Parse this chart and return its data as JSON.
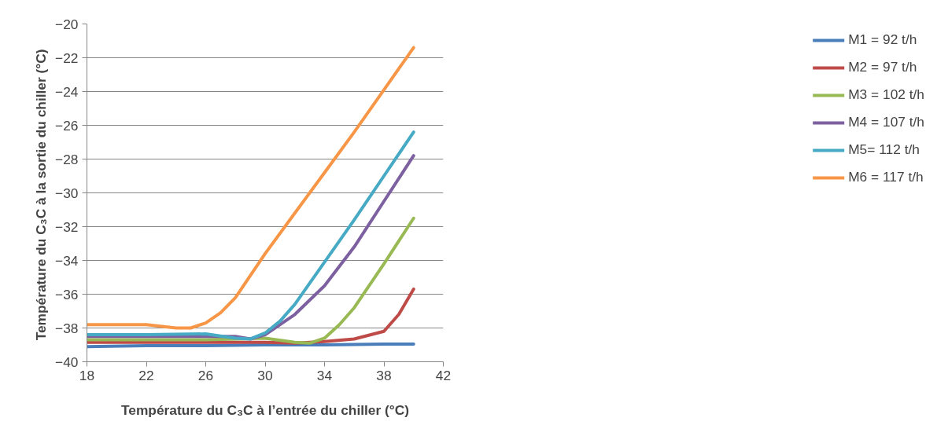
{
  "chart_data": {
    "type": "line",
    "xlabel": "Température du C₃C à l’entrée du chiller (°C)",
    "ylabel": "Température du C₃C à la sortie du chiller  (°C)",
    "xlim": [
      18,
      42
    ],
    "xticks": [
      18,
      22,
      26,
      30,
      34,
      38,
      42
    ],
    "ylim": [
      -40,
      -20
    ],
    "yticks": [
      -40,
      -38,
      -36,
      -34,
      -32,
      -30,
      -28,
      -26,
      -24,
      -22,
      -20
    ],
    "grid": "y",
    "legend": "right",
    "marker": "none",
    "line_style": "solid",
    "series": [
      {
        "name": "M1 = 92 t/h",
        "color": "#4a7ebb",
        "x": [
          18,
          22,
          26,
          30,
          34,
          38,
          40
        ],
        "values": [
          -39.1,
          -39.05,
          -39.05,
          -39.0,
          -39.0,
          -38.95,
          -38.95
        ]
      },
      {
        "name": "M2 = 97 t/h",
        "color": "#be4b48",
        "x": [
          18,
          22,
          26,
          30,
          32,
          34,
          36,
          38,
          39,
          40
        ],
        "values": [
          -38.85,
          -38.85,
          -38.85,
          -38.85,
          -38.9,
          -38.8,
          -38.65,
          -38.2,
          -37.2,
          -35.7
        ]
      },
      {
        "name": "M3 = 102 t/h",
        "color": "#98b954",
        "x": [
          18,
          22,
          26,
          30,
          32,
          33,
          34,
          35,
          36,
          38,
          40
        ],
        "values": [
          -38.7,
          -38.7,
          -38.7,
          -38.6,
          -38.85,
          -38.9,
          -38.6,
          -37.8,
          -36.8,
          -34.2,
          -31.5
        ]
      },
      {
        "name": "M4 = 107 t/h",
        "color": "#7d60a0",
        "x": [
          18,
          22,
          26,
          28,
          29,
          30,
          32,
          34,
          36,
          38,
          40
        ],
        "values": [
          -38.5,
          -38.5,
          -38.5,
          -38.5,
          -38.65,
          -38.4,
          -37.2,
          -35.5,
          -33.2,
          -30.5,
          -27.8
        ]
      },
      {
        "name": "M5= 112 t/h",
        "color": "#46aac5",
        "x": [
          18,
          22,
          26,
          28,
          29,
          30,
          31,
          32,
          34,
          36,
          38,
          40
        ],
        "values": [
          -38.4,
          -38.4,
          -38.35,
          -38.6,
          -38.65,
          -38.3,
          -37.6,
          -36.6,
          -34.1,
          -31.6,
          -29.0,
          -26.4
        ]
      },
      {
        "name": "M6 = 117 t/h",
        "color": "#f79646",
        "x": [
          18,
          22,
          24,
          25,
          26,
          27,
          28,
          30,
          32,
          34,
          36,
          38,
          40
        ],
        "values": [
          -37.8,
          -37.8,
          -38.0,
          -38.0,
          -37.7,
          -37.1,
          -36.2,
          -33.6,
          -31.2,
          -28.8,
          -26.4,
          -23.9,
          -21.4
        ]
      }
    ]
  }
}
